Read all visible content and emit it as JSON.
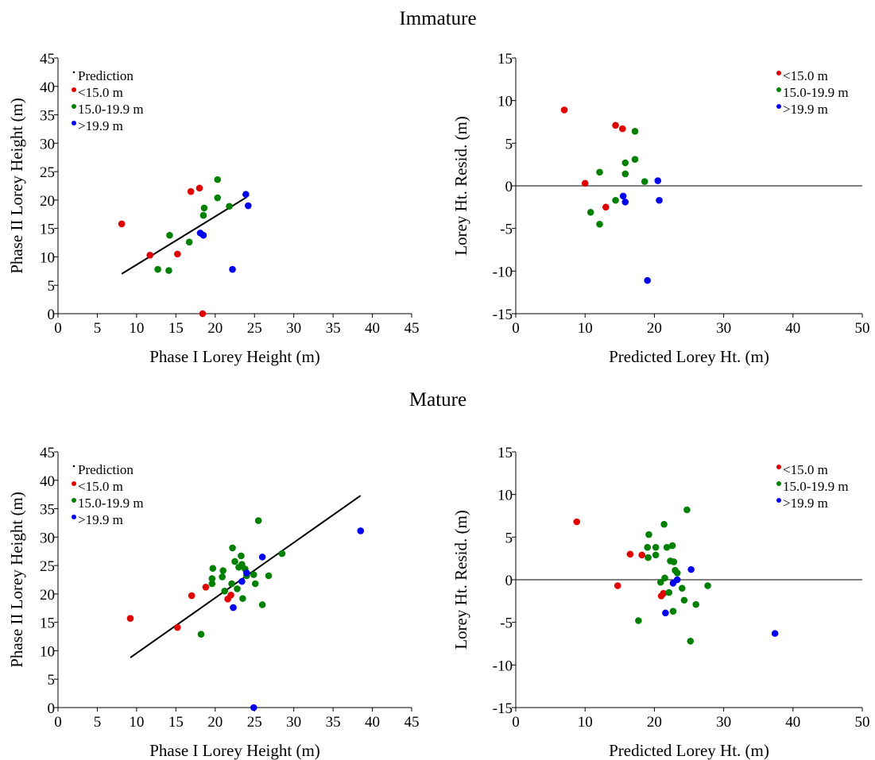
{
  "section_titles": {
    "top": "Immature",
    "bottom": "Mature"
  },
  "colors": {
    "lt15": "#e00000",
    "mid": "#008000",
    "gt199": "#0000ee",
    "line": "#000000"
  },
  "chart_data": [
    {
      "id": "imm_obs",
      "type": "scatter",
      "xlabel": "Phase I Lorey Height (m)",
      "ylabel": "Phase II Lorey Height (m)",
      "xlim": [
        0,
        45
      ],
      "ylim": [
        0,
        45
      ],
      "xticks": [
        0,
        5,
        10,
        15,
        20,
        25,
        30,
        35,
        40,
        45
      ],
      "yticks": [
        0,
        5,
        10,
        15,
        20,
        25,
        30,
        35,
        40,
        45
      ],
      "legend_position": "top-left",
      "legend": [
        "Prediction",
        "<15.0 m",
        "15.0-19.9 m",
        ">19.9 m"
      ],
      "prediction_line": [
        [
          8.1,
          7.0
        ],
        [
          24.0,
          20.5
        ]
      ],
      "series": [
        {
          "name": "<15.0 m",
          "color": "#e00000",
          "points": [
            [
              8.1,
              15.8
            ],
            [
              11.7,
              10.3
            ],
            [
              15.2,
              10.5
            ],
            [
              16.9,
              21.5
            ],
            [
              18.0,
              22.1
            ],
            [
              18.4,
              0.0
            ]
          ]
        },
        {
          "name": "15.0-19.9 m",
          "color": "#008000",
          "points": [
            [
              12.7,
              7.8
            ],
            [
              14.1,
              7.6
            ],
            [
              14.2,
              13.8
            ],
            [
              16.7,
              12.6
            ],
            [
              18.5,
              17.3
            ],
            [
              18.6,
              18.6
            ],
            [
              20.3,
              23.6
            ],
            [
              20.3,
              20.4
            ],
            [
              21.8,
              18.9
            ]
          ]
        },
        {
          "name": ">19.9 m",
          "color": "#0000ee",
          "points": [
            [
              18.1,
              14.2
            ],
            [
              18.5,
              13.8
            ],
            [
              22.2,
              7.8
            ],
            [
              23.9,
              21.0
            ],
            [
              24.2,
              19.0
            ]
          ]
        }
      ]
    },
    {
      "id": "imm_res",
      "type": "scatter",
      "xlabel": "Predicted Lorey Ht. (m)",
      "ylabel": "Lorey Ht. Resid. (m)",
      "xlim": [
        0,
        50
      ],
      "ylim": [
        -15,
        15
      ],
      "xticks": [
        0,
        10,
        20,
        30,
        40,
        50
      ],
      "yticks": [
        -15,
        -10,
        -5,
        0,
        5,
        10,
        15
      ],
      "zero_line": true,
      "legend_position": "top-right",
      "legend": [
        "<15.0 m",
        "15.0-19.9 m",
        ">19.9 m"
      ],
      "series": [
        {
          "name": "<15.0 m",
          "color": "#e00000",
          "points": [
            [
              7.0,
              8.9
            ],
            [
              10.0,
              0.3
            ],
            [
              13.0,
              -2.5
            ],
            [
              14.4,
              7.1
            ],
            [
              15.4,
              6.7
            ]
          ]
        },
        {
          "name": "15.0-19.9 m",
          "color": "#008000",
          "points": [
            [
              10.8,
              -3.1
            ],
            [
              12.1,
              1.6
            ],
            [
              12.1,
              -4.5
            ],
            [
              14.4,
              -1.7
            ],
            [
              15.8,
              2.7
            ],
            [
              15.8,
              1.4
            ],
            [
              17.2,
              6.4
            ],
            [
              17.2,
              3.1
            ],
            [
              18.6,
              0.5
            ]
          ]
        },
        {
          "name": ">19.9 m",
          "color": "#0000ee",
          "points": [
            [
              15.5,
              -1.2
            ],
            [
              15.8,
              -1.9
            ],
            [
              19.0,
              -11.1
            ],
            [
              20.5,
              0.6
            ],
            [
              20.7,
              -1.7
            ]
          ]
        }
      ]
    },
    {
      "id": "mat_obs",
      "type": "scatter",
      "xlabel": "Phase I Lorey Height (m)",
      "ylabel": "Phase II Lorey Height (m)",
      "xlim": [
        0,
        45
      ],
      "ylim": [
        0,
        45
      ],
      "xticks": [
        0,
        5,
        10,
        15,
        20,
        25,
        30,
        35,
        40,
        45
      ],
      "yticks": [
        0,
        5,
        10,
        15,
        20,
        25,
        30,
        35,
        40,
        45
      ],
      "legend_position": "top-left",
      "legend": [
        "Prediction",
        "<15.0 m",
        "15.0-19.9 m",
        ">19.9 m"
      ],
      "prediction_line": [
        [
          9.2,
          8.8
        ],
        [
          38.5,
          37.3
        ]
      ],
      "series": [
        {
          "name": "<15.0 m",
          "color": "#e00000",
          "points": [
            [
              9.2,
              15.7
            ],
            [
              15.2,
              14.1
            ],
            [
              17.0,
              19.7
            ],
            [
              18.8,
              21.2
            ],
            [
              21.6,
              19.1
            ],
            [
              22.0,
              19.8
            ]
          ]
        },
        {
          "name": "15.0-19.9 m",
          "color": "#008000",
          "points": [
            [
              18.2,
              12.9
            ],
            [
              19.6,
              22.7
            ],
            [
              19.6,
              21.8
            ],
            [
              19.7,
              24.5
            ],
            [
              20.9,
              23.0
            ],
            [
              21.0,
              24.1
            ],
            [
              21.2,
              20.5
            ],
            [
              22.1,
              21.8
            ],
            [
              22.2,
              28.1
            ],
            [
              22.5,
              25.7
            ],
            [
              22.8,
              20.9
            ],
            [
              23.0,
              24.7
            ],
            [
              23.3,
              26.7
            ],
            [
              23.4,
              25.2
            ],
            [
              23.5,
              19.2
            ],
            [
              23.8,
              24.4
            ],
            [
              24.0,
              23.2
            ],
            [
              24.9,
              23.4
            ],
            [
              25.1,
              21.8
            ],
            [
              25.5,
              32.9
            ],
            [
              26.0,
              18.1
            ],
            [
              26.8,
              23.2
            ],
            [
              28.5,
              27.1
            ]
          ]
        },
        {
          "name": ">19.9 m",
          "color": "#0000ee",
          "points": [
            [
              22.3,
              17.6
            ],
            [
              23.4,
              22.2
            ],
            [
              24.0,
              23.7
            ],
            [
              24.9,
              0.0
            ],
            [
              26.0,
              26.5
            ],
            [
              38.5,
              31.1
            ]
          ]
        }
      ]
    },
    {
      "id": "mat_res",
      "type": "scatter",
      "xlabel": "Predicted Lorey Ht. (m)",
      "ylabel": "Lorey Ht. Resid. (m)",
      "xlim": [
        0,
        50
      ],
      "ylim": [
        -15,
        15
      ],
      "xticks": [
        0,
        10,
        20,
        30,
        40,
        50
      ],
      "yticks": [
        -15,
        -10,
        -5,
        0,
        5,
        10,
        15
      ],
      "zero_line": true,
      "legend_position": "top-right",
      "legend": [
        "<15.0 m",
        "15.0-19.9 m",
        ">19.9 m"
      ],
      "series": [
        {
          "name": "<15.0 m",
          "color": "#e00000",
          "points": [
            [
              8.8,
              6.8
            ],
            [
              14.7,
              -0.7
            ],
            [
              16.5,
              3.0
            ],
            [
              18.2,
              2.9
            ],
            [
              21.0,
              -1.9
            ],
            [
              21.3,
              -1.6
            ]
          ]
        },
        {
          "name": "15.0-19.9 m",
          "color": "#008000",
          "points": [
            [
              17.7,
              -4.8
            ],
            [
              19.0,
              3.8
            ],
            [
              19.1,
              2.6
            ],
            [
              19.2,
              5.3
            ],
            [
              20.2,
              3.8
            ],
            [
              20.2,
              2.9
            ],
            [
              20.9,
              -0.3
            ],
            [
              21.4,
              6.5
            ],
            [
              21.5,
              0.2
            ],
            [
              21.8,
              3.8
            ],
            [
              22.1,
              -1.5
            ],
            [
              22.3,
              2.2
            ],
            [
              22.6,
              4.0
            ],
            [
              22.7,
              -3.7
            ],
            [
              22.8,
              2.1
            ],
            [
              23.0,
              1.1
            ],
            [
              23.3,
              0.8
            ],
            [
              24.0,
              -1.0
            ],
            [
              24.3,
              -2.4
            ],
            [
              24.7,
              8.2
            ],
            [
              25.2,
              -7.2
            ],
            [
              26.0,
              -2.9
            ],
            [
              27.7,
              -0.7
            ]
          ]
        },
        {
          "name": ">19.9 m",
          "color": "#0000ee",
          "points": [
            [
              21.6,
              -3.9
            ],
            [
              22.7,
              -0.4
            ],
            [
              23.3,
              0.0
            ],
            [
              25.3,
              1.2
            ],
            [
              37.4,
              -6.3
            ]
          ]
        }
      ]
    }
  ]
}
